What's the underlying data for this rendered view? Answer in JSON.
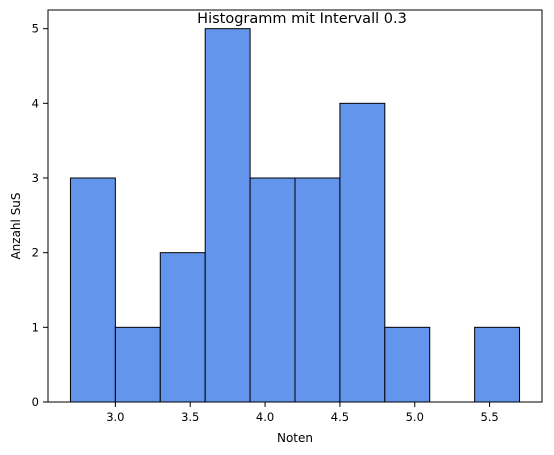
{
  "chart_data": {
    "type": "bar",
    "title": "Histogramm mit Intervall 0.3",
    "xlabel": "Noten",
    "ylabel": "Anzahl SuS",
    "bin_edges": [
      2.7,
      3.0,
      3.3,
      3.6,
      3.9,
      4.2,
      4.5,
      4.8,
      5.1,
      5.4,
      5.7
    ],
    "values": [
      3,
      1,
      2,
      5,
      3,
      3,
      4,
      1,
      0,
      1
    ],
    "xlim": [
      2.55,
      5.85
    ],
    "ylim": [
      0,
      5.25
    ],
    "xticks": [
      3.0,
      3.5,
      4.0,
      4.5,
      5.0,
      5.5
    ],
    "xtick_labels": [
      "3.0",
      "3.5",
      "4.0",
      "4.5",
      "5.0",
      "5.5"
    ],
    "yticks": [
      0,
      1,
      2,
      3,
      4,
      5
    ],
    "ytick_labels": [
      "0",
      "1",
      "2",
      "3",
      "4",
      "5"
    ],
    "grid": false,
    "bar_color": "#6495ED",
    "edge_color": "#000000"
  }
}
